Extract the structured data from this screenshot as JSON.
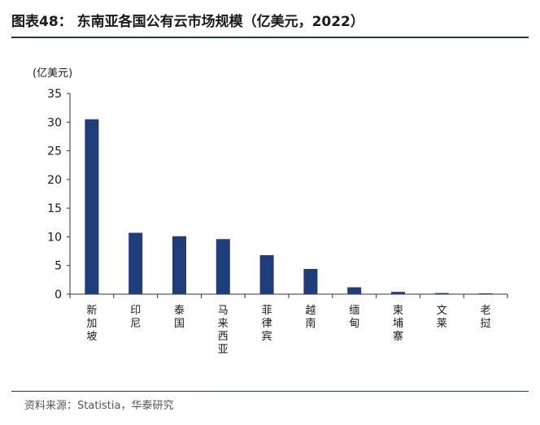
{
  "title": "图表48：  东南亚各国公有云市场规模（亿美元，2022）",
  "source": "资料来源：Statistia，华泰研究",
  "colors": {
    "bar": "#1f3d7a",
    "axis": "#333333",
    "rule": "#1f3864"
  },
  "chart_data": {
    "type": "bar",
    "title": "图表48：  东南亚各国公有云市场规模（亿美元，2022）",
    "ylabel": "(亿美元)",
    "xlabel": "",
    "ylim": [
      0,
      35
    ],
    "yticks": [
      0,
      5,
      10,
      15,
      20,
      25,
      30,
      35
    ],
    "grid": false,
    "legend": "none",
    "categories": [
      "新加坡",
      "印尼",
      "泰国",
      "马来西亚",
      "菲律宾",
      "越南",
      "缅甸",
      "柬埔寨",
      "文莱",
      "老挝"
    ],
    "values": [
      30.5,
      10.7,
      10.1,
      9.6,
      6.8,
      4.4,
      1.2,
      0.4,
      0.2,
      0.1
    ]
  }
}
